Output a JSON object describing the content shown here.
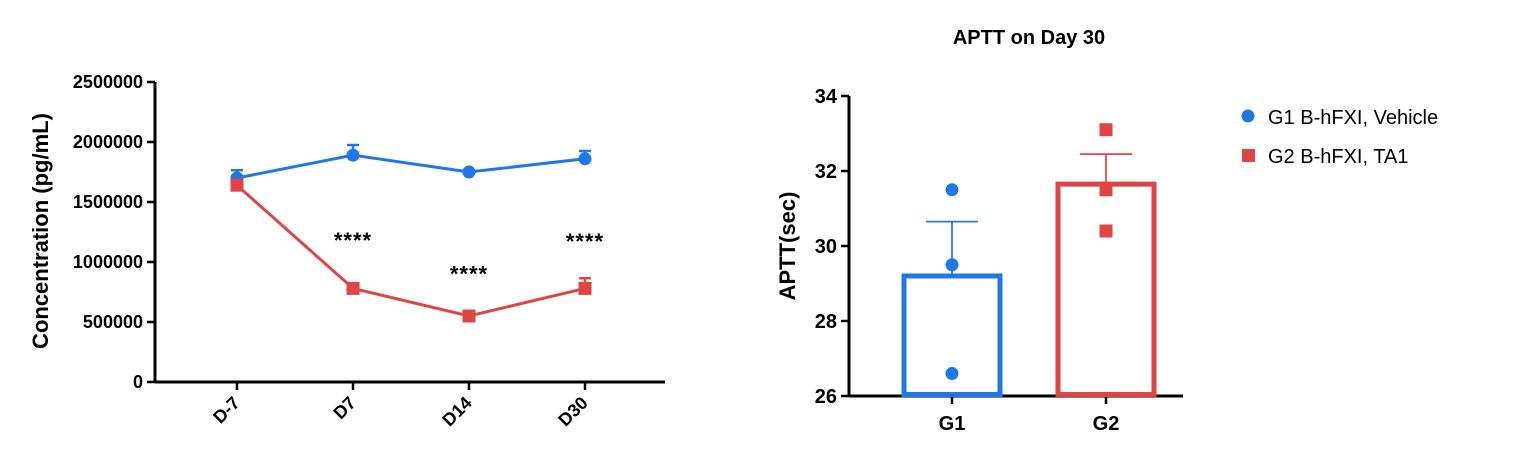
{
  "colors": {
    "g1": "#1f78e6",
    "g2": "#e04545",
    "axis": "#000000"
  },
  "legend": {
    "items": [
      {
        "label": "G1 B-hFXI, Vehicle",
        "marker": "circle",
        "color_key": "g1"
      },
      {
        "label": "G2 B-hFXI, TA1",
        "marker": "square",
        "color_key": "g2"
      }
    ]
  },
  "chart_data": [
    {
      "type": "line",
      "title": "",
      "xlabel": "",
      "ylabel": "Concentration (pg/mL)",
      "categories": [
        "D-7",
        "D7",
        "D14",
        "D30"
      ],
      "ylim": [
        0,
        2500000
      ],
      "yticks": [
        "0",
        "500000",
        "1000000",
        "1500000",
        "2000000",
        "2500000"
      ],
      "grid": false,
      "series": [
        {
          "name": "G1 B-hFXI, Vehicle",
          "color_key": "g1",
          "marker": "circle",
          "values": [
            1700000,
            1890000,
            1750000,
            1860000
          ],
          "errors": [
            65000,
            85000,
            15000,
            65000
          ]
        },
        {
          "name": "G2 B-hFXI, TA1",
          "color_key": "g2",
          "marker": "square",
          "values": [
            1640000,
            780000,
            550000,
            780000
          ],
          "errors": [
            20000,
            30000,
            20000,
            85000
          ]
        }
      ],
      "annotations": [
        {
          "category": "D7",
          "text": "****",
          "y": 1200000
        },
        {
          "category": "D14",
          "text": "****",
          "y": 920000
        },
        {
          "category": "D30",
          "text": "****",
          "y": 1190000
        }
      ]
    },
    {
      "type": "bar",
      "title": "APTT on Day 30",
      "xlabel": "",
      "ylabel": "APTT(sec)",
      "categories": [
        "G1",
        "G2"
      ],
      "ylim": [
        26,
        34
      ],
      "yticks": [
        "26",
        "28",
        "30",
        "32",
        "34"
      ],
      "grid": false,
      "bars": [
        {
          "category": "G1",
          "color_key": "g1",
          "mean": 29.2,
          "error": 1.45,
          "points": [
            31.5,
            29.5,
            26.6
          ]
        },
        {
          "category": "G2",
          "color_key": "g2",
          "mean": 31.65,
          "error": 0.8,
          "points": [
            33.1,
            31.5,
            30.4
          ]
        }
      ]
    }
  ]
}
